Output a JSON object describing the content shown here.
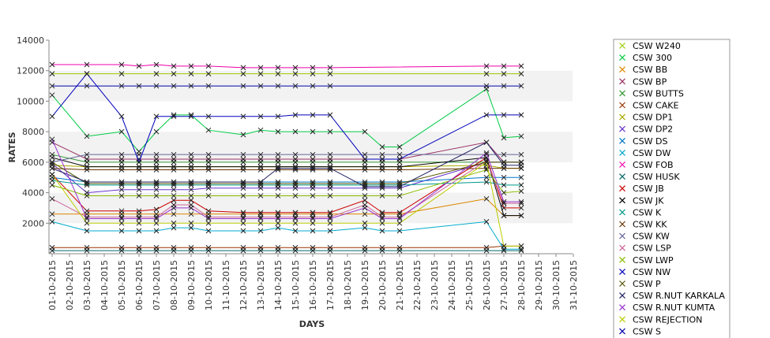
{
  "chart_data": {
    "type": "line",
    "title": "",
    "xlabel": "DAYS",
    "ylabel": "RATES",
    "ylim": [
      0,
      14000
    ],
    "yticks": [
      2000,
      4000,
      6000,
      8000,
      10000,
      12000,
      14000
    ],
    "grid": "alternating horizontal bands",
    "legend_position": "right",
    "marker": "x",
    "categories": [
      "01-10-2015",
      "02-10-2015",
      "03-10-2015",
      "04-10-2015",
      "05-10-2015",
      "06-10-2015",
      "07-10-2015",
      "08-10-2015",
      "09-10-2015",
      "10-10-2015",
      "11-10-2015",
      "12-10-2015",
      "13-10-2015",
      "14-10-2015",
      "15-10-2015",
      "16-10-2015",
      "17-10-2015",
      "18-10-2015",
      "19-10-2015",
      "20-10-2015",
      "21-10-2015",
      "22-10-2015",
      "23-10-2015",
      "24-10-2015",
      "25-10-2015",
      "26-10-2015",
      "27-10-2015",
      "28-10-2015",
      "29-10-2015",
      "30-10-2015",
      "31-10-2015"
    ],
    "series": [
      {
        "name": "CSW  W240",
        "color": "#99cc00",
        "values": [
          11800,
          null,
          11800,
          null,
          11800,
          null,
          11800,
          11800,
          11800,
          11800,
          null,
          11800,
          11800,
          11800,
          11800,
          11800,
          11800,
          null,
          null,
          null,
          null,
          null,
          null,
          null,
          null,
          11800,
          11800,
          11800,
          null,
          null,
          null
        ]
      },
      {
        "name": "CSW 300",
        "color": "#00cc44",
        "values": [
          10400,
          null,
          7700,
          null,
          8000,
          6700,
          8000,
          9100,
          9100,
          8100,
          null,
          7800,
          8100,
          8000,
          8000,
          8000,
          8000,
          null,
          8000,
          7000,
          7000,
          null,
          null,
          null,
          null,
          10800,
          7600,
          7700,
          null,
          null,
          null
        ]
      },
      {
        "name": "CSW BB",
        "color": "#dd8800",
        "values": [
          2600,
          null,
          2600,
          null,
          2600,
          2600,
          2600,
          2600,
          2600,
          2600,
          null,
          2600,
          2600,
          2600,
          2600,
          2600,
          2600,
          null,
          2600,
          2600,
          2600,
          null,
          null,
          null,
          null,
          3600,
          2500,
          2500,
          null,
          null,
          null
        ]
      },
      {
        "name": "CSW BP",
        "color": "#993366",
        "values": [
          7300,
          null,
          6200,
          null,
          6200,
          6200,
          6200,
          6200,
          6200,
          6200,
          null,
          6200,
          6200,
          6200,
          6200,
          6200,
          6200,
          null,
          6200,
          6200,
          6200,
          null,
          null,
          null,
          null,
          7300,
          6000,
          6000,
          null,
          null,
          null
        ]
      },
      {
        "name": "CSW BUTTS",
        "color": "#339933",
        "values": [
          6500,
          null,
          6000,
          null,
          6000,
          6000,
          6000,
          6000,
          6000,
          6000,
          null,
          6000,
          6000,
          6000,
          6000,
          6000,
          6000,
          null,
          6000,
          6000,
          6000,
          null,
          null,
          null,
          null,
          6000,
          6000,
          6000,
          null,
          null,
          null
        ]
      },
      {
        "name": "CSW CAKE",
        "color": "#993300",
        "values": [
          400,
          null,
          400,
          null,
          400,
          400,
          400,
          400,
          400,
          400,
          null,
          400,
          400,
          400,
          400,
          400,
          400,
          null,
          400,
          400,
          400,
          null,
          null,
          null,
          null,
          400,
          500,
          500,
          null,
          null,
          null
        ]
      },
      {
        "name": "CSW DP1",
        "color": "#aaaa00",
        "values": [
          5800,
          null,
          5700,
          null,
          5700,
          5700,
          5700,
          5700,
          5700,
          5700,
          null,
          5700,
          5700,
          5700,
          5700,
          5700,
          5700,
          null,
          5700,
          5700,
          5700,
          null,
          null,
          null,
          null,
          5800,
          5600,
          5600,
          null,
          null,
          null
        ]
      },
      {
        "name": "CSW DP2",
        "color": "#6633cc",
        "values": [
          5900,
          null,
          4000,
          null,
          4200,
          4200,
          4200,
          4200,
          4200,
          4300,
          null,
          4300,
          4300,
          4300,
          4300,
          4300,
          4300,
          null,
          4300,
          4300,
          4300,
          null,
          null,
          null,
          null,
          6000,
          6000,
          6000,
          null,
          null,
          null
        ]
      },
      {
        "name": "CSW DS",
        "color": "#0077cc",
        "values": [
          5000,
          null,
          4700,
          null,
          4700,
          4700,
          4700,
          4700,
          4700,
          4700,
          null,
          4700,
          4700,
          4700,
          4700,
          4700,
          4700,
          null,
          4700,
          4700,
          4700,
          null,
          null,
          null,
          null,
          5000,
          5000,
          5000,
          null,
          null,
          null
        ]
      },
      {
        "name": "CSW DW",
        "color": "#00aacc",
        "values": [
          2100,
          null,
          1500,
          null,
          1500,
          1500,
          1500,
          1700,
          1700,
          1500,
          null,
          1500,
          1500,
          1700,
          1500,
          1500,
          1500,
          null,
          1700,
          1500,
          1500,
          null,
          null,
          null,
          null,
          2100,
          300,
          300,
          null,
          null,
          null
        ]
      },
      {
        "name": "CSW FOB",
        "color": "#ee00aa",
        "values": [
          12400,
          null,
          12400,
          null,
          12400,
          12300,
          12400,
          12300,
          12300,
          12300,
          null,
          12200,
          12200,
          12200,
          12200,
          12200,
          12200,
          null,
          null,
          null,
          null,
          null,
          null,
          null,
          null,
          12300,
          12300,
          12300,
          null,
          null,
          null
        ]
      },
      {
        "name": "CSW HUSK",
        "color": "#006666",
        "values": [
          200,
          null,
          200,
          null,
          200,
          200,
          200,
          200,
          200,
          200,
          null,
          200,
          200,
          200,
          200,
          200,
          200,
          null,
          200,
          200,
          200,
          null,
          null,
          null,
          null,
          200,
          200,
          200,
          null,
          null,
          null
        ]
      },
      {
        "name": "CSW JB",
        "color": "#cc0000",
        "values": [
          5200,
          null,
          2800,
          null,
          2800,
          2800,
          2900,
          3500,
          3500,
          2800,
          null,
          2700,
          2700,
          2700,
          2700,
          2700,
          2700,
          null,
          3500,
          2700,
          2700,
          null,
          null,
          null,
          null,
          6300,
          3000,
          3000,
          null,
          null,
          null
        ]
      },
      {
        "name": "CSW JK",
        "color": "#000000",
        "values": [
          6300,
          null,
          5700,
          null,
          5700,
          5700,
          5700,
          5700,
          5700,
          5700,
          null,
          5700,
          5700,
          5700,
          5700,
          5700,
          5700,
          null,
          5700,
          5700,
          5700,
          null,
          null,
          null,
          null,
          6300,
          2500,
          2500,
          null,
          null,
          null
        ]
      },
      {
        "name": "CSW K",
        "color": "#009988",
        "values": [
          4800,
          null,
          4500,
          null,
          4500,
          4500,
          4500,
          4500,
          4500,
          4500,
          null,
          4500,
          4500,
          4500,
          4500,
          4500,
          4500,
          null,
          4500,
          4500,
          4500,
          null,
          null,
          null,
          null,
          4700,
          4500,
          4500,
          null,
          null,
          null
        ]
      },
      {
        "name": "CSW KK",
        "color": "#663300",
        "values": [
          5600,
          null,
          5500,
          null,
          5500,
          5500,
          5500,
          5500,
          5500,
          5500,
          null,
          5500,
          5500,
          5500,
          5500,
          5500,
          5500,
          null,
          5500,
          5500,
          5500,
          null,
          null,
          null,
          null,
          5600,
          5600,
          5600,
          null,
          null,
          null
        ]
      },
      {
        "name": "CSW KW",
        "color": "#666699",
        "values": [
          6000,
          null,
          6500,
          null,
          6500,
          6500,
          6500,
          6500,
          6500,
          6500,
          null,
          6500,
          6500,
          6500,
          6500,
          6500,
          6500,
          null,
          6500,
          6500,
          6500,
          null,
          null,
          null,
          null,
          6500,
          6500,
          6500,
          null,
          null,
          null
        ]
      },
      {
        "name": "CSW LSP",
        "color": "#cc6699",
        "values": [
          3600,
          null,
          2400,
          null,
          2400,
          2400,
          2400,
          3200,
          3200,
          2400,
          null,
          2400,
          2400,
          2400,
          2400,
          2400,
          2400,
          null,
          3200,
          2400,
          2400,
          null,
          null,
          null,
          null,
          6100,
          3300,
          3300,
          null,
          null,
          null
        ]
      },
      {
        "name": "CSW LWP",
        "color": "#88bb00",
        "values": [
          4500,
          null,
          3800,
          null,
          3800,
          3800,
          3800,
          3800,
          3800,
          3800,
          null,
          3800,
          3800,
          3800,
          3800,
          3800,
          3800,
          null,
          3800,
          3800,
          3800,
          null,
          null,
          null,
          null,
          5500,
          4000,
          4100,
          null,
          null,
          null
        ]
      },
      {
        "name": "CSW NW",
        "color": "#0000bb",
        "values": [
          9000,
          null,
          11800,
          null,
          9000,
          6000,
          9000,
          9000,
          9000,
          9000,
          null,
          9000,
          9000,
          9000,
          9100,
          9100,
          9100,
          null,
          6200,
          6200,
          6200,
          null,
          null,
          null,
          null,
          9100,
          9100,
          9100,
          null,
          null,
          null
        ]
      },
      {
        "name": "CSW P",
        "color": "#555500",
        "values": [
          6000,
          null,
          4600,
          null,
          4600,
          4600,
          4600,
          4600,
          4600,
          4600,
          null,
          4600,
          4600,
          4600,
          4600,
          4600,
          4600,
          null,
          4600,
          4600,
          4600,
          null,
          null,
          null,
          null,
          6000,
          6000,
          6000,
          null,
          null,
          null
        ]
      },
      {
        "name": "CSW R.NUT KARKALA",
        "color": "#222266",
        "values": [
          5600,
          null,
          4700,
          null,
          4700,
          4700,
          4700,
          4700,
          4700,
          4700,
          null,
          4700,
          4700,
          5600,
          5600,
          5600,
          5600,
          null,
          4400,
          4400,
          4400,
          null,
          null,
          null,
          null,
          7300,
          5800,
          5800,
          null,
          null,
          null
        ]
      },
      {
        "name": "CSW R.NUT KUMTA",
        "color": "#9933cc",
        "values": [
          7500,
          null,
          2300,
          null,
          2300,
          2300,
          2300,
          3000,
          3000,
          2300,
          null,
          2300,
          2300,
          2300,
          2300,
          2300,
          2300,
          null,
          3000,
          2300,
          2300,
          null,
          null,
          null,
          null,
          6600,
          3400,
          3400,
          null,
          null,
          null
        ]
      },
      {
        "name": "CSW REJECTION",
        "color": "#bbcc00",
        "values": [
          5200,
          null,
          2000,
          null,
          2000,
          2000,
          2000,
          2000,
          2000,
          2000,
          null,
          2000,
          2000,
          2000,
          2000,
          2000,
          2000,
          null,
          2000,
          2000,
          2000,
          null,
          null,
          null,
          null,
          6000,
          500,
          500,
          null,
          null,
          null
        ]
      },
      {
        "name": "CSW S",
        "color": "#0000aa",
        "values": [
          11000,
          null,
          11000,
          null,
          11000,
          11000,
          11000,
          11000,
          11000,
          11000,
          null,
          11000,
          11000,
          11000,
          11000,
          11000,
          11000,
          null,
          null,
          null,
          null,
          null,
          null,
          null,
          null,
          11000,
          11000,
          11000,
          null,
          null,
          null
        ]
      }
    ]
  }
}
